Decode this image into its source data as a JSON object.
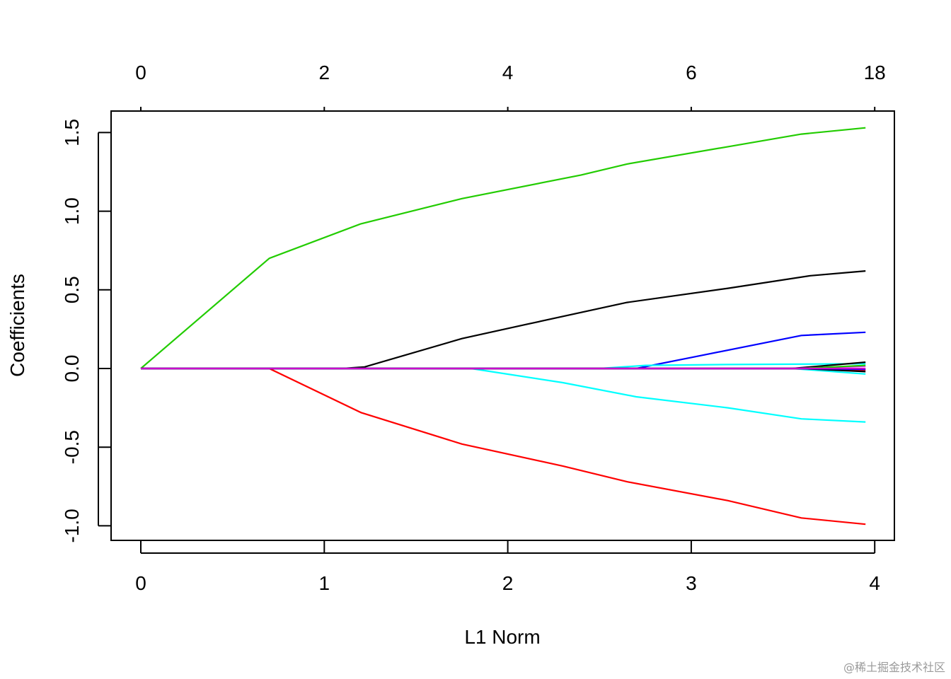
{
  "watermark": "@稀土掘金技术社区",
  "chart_data": {
    "type": "line",
    "xlabel": "L1 Norm",
    "ylabel": "Coefficients",
    "xlim": [
      0,
      3.95
    ],
    "ylim": [
      -1.05,
      1.6
    ],
    "x_ticks": [
      0,
      1,
      2,
      3,
      4
    ],
    "y_ticks": [
      -1.0,
      -0.5,
      0.0,
      0.5,
      1.0,
      1.5
    ],
    "y_tick_labels": [
      "-1.0",
      "-0.5",
      "0.0",
      "0.5",
      "1.0",
      "1.5"
    ],
    "top_axis": {
      "tick_positions": [
        0,
        1,
        2,
        3,
        4
      ],
      "tick_labels": [
        "0",
        "2",
        "4",
        "6",
        "18"
      ]
    },
    "grid": false,
    "series": [
      {
        "color": "#22cc00",
        "points": [
          [
            0,
            0
          ],
          [
            0.7,
            0.7
          ],
          [
            1.2,
            0.92
          ],
          [
            1.75,
            1.08
          ],
          [
            2.4,
            1.23
          ],
          [
            2.65,
            1.3
          ],
          [
            3.2,
            1.41
          ],
          [
            3.6,
            1.49
          ],
          [
            3.95,
            1.53
          ]
        ]
      },
      {
        "color": "#000000",
        "points": [
          [
            0,
            0
          ],
          [
            1.1,
            0
          ],
          [
            1.22,
            0.01
          ],
          [
            1.75,
            0.19
          ],
          [
            2.1,
            0.28
          ],
          [
            2.65,
            0.42
          ],
          [
            3.2,
            0.51
          ],
          [
            3.65,
            0.59
          ],
          [
            3.95,
            0.62
          ]
        ]
      },
      {
        "color": "#0000ff",
        "points": [
          [
            0,
            0
          ],
          [
            2.7,
            0
          ],
          [
            3.0,
            0.07
          ],
          [
            3.6,
            0.21
          ],
          [
            3.95,
            0.23
          ]
        ]
      },
      {
        "color": "#00ffff",
        "points": [
          [
            0,
            0
          ],
          [
            1.8,
            0
          ],
          [
            2.3,
            -0.09
          ],
          [
            2.7,
            -0.18
          ],
          [
            3.2,
            -0.25
          ],
          [
            3.6,
            -0.32
          ],
          [
            3.95,
            -0.34
          ]
        ]
      },
      {
        "color": "#00ffff",
        "points": [
          [
            0,
            0
          ],
          [
            2.5,
            0
          ],
          [
            2.75,
            0.02
          ],
          [
            3.2,
            0.025
          ],
          [
            3.95,
            0.03
          ]
        ]
      },
      {
        "color": "#ff0000",
        "points": [
          [
            0,
            0
          ],
          [
            0.7,
            0
          ],
          [
            1.2,
            -0.28
          ],
          [
            1.75,
            -0.48
          ],
          [
            2.3,
            -0.62
          ],
          [
            2.65,
            -0.72
          ],
          [
            3.2,
            -0.84
          ],
          [
            3.6,
            -0.95
          ],
          [
            3.95,
            -0.99
          ]
        ]
      },
      {
        "color": "#000000",
        "points": [
          [
            0,
            0
          ],
          [
            3.55,
            0
          ],
          [
            3.95,
            0.04
          ]
        ]
      },
      {
        "color": "#00ffff",
        "points": [
          [
            0,
            0
          ],
          [
            3.55,
            0
          ],
          [
            3.95,
            -0.035
          ]
        ]
      },
      {
        "color": "#ff00ff",
        "points": [
          [
            0,
            0
          ],
          [
            3.55,
            0
          ],
          [
            3.95,
            0.015
          ]
        ]
      },
      {
        "color": "#ff0000",
        "points": [
          [
            0,
            0
          ],
          [
            3.55,
            0
          ],
          [
            3.95,
            -0.01
          ]
        ]
      },
      {
        "color": "#000000",
        "points": [
          [
            0,
            0
          ],
          [
            3.6,
            0
          ],
          [
            3.95,
            -0.02
          ]
        ]
      },
      {
        "color": "#22cc00",
        "points": [
          [
            0,
            0
          ],
          [
            3.6,
            0
          ],
          [
            3.95,
            0.02
          ]
        ]
      },
      {
        "color": "#0000ff",
        "points": [
          [
            0,
            0
          ],
          [
            3.6,
            0
          ],
          [
            3.95,
            -0.005
          ]
        ]
      },
      {
        "color": "#cc00cc",
        "points": [
          [
            0,
            0
          ],
          [
            3.95,
            0
          ]
        ]
      }
    ]
  }
}
